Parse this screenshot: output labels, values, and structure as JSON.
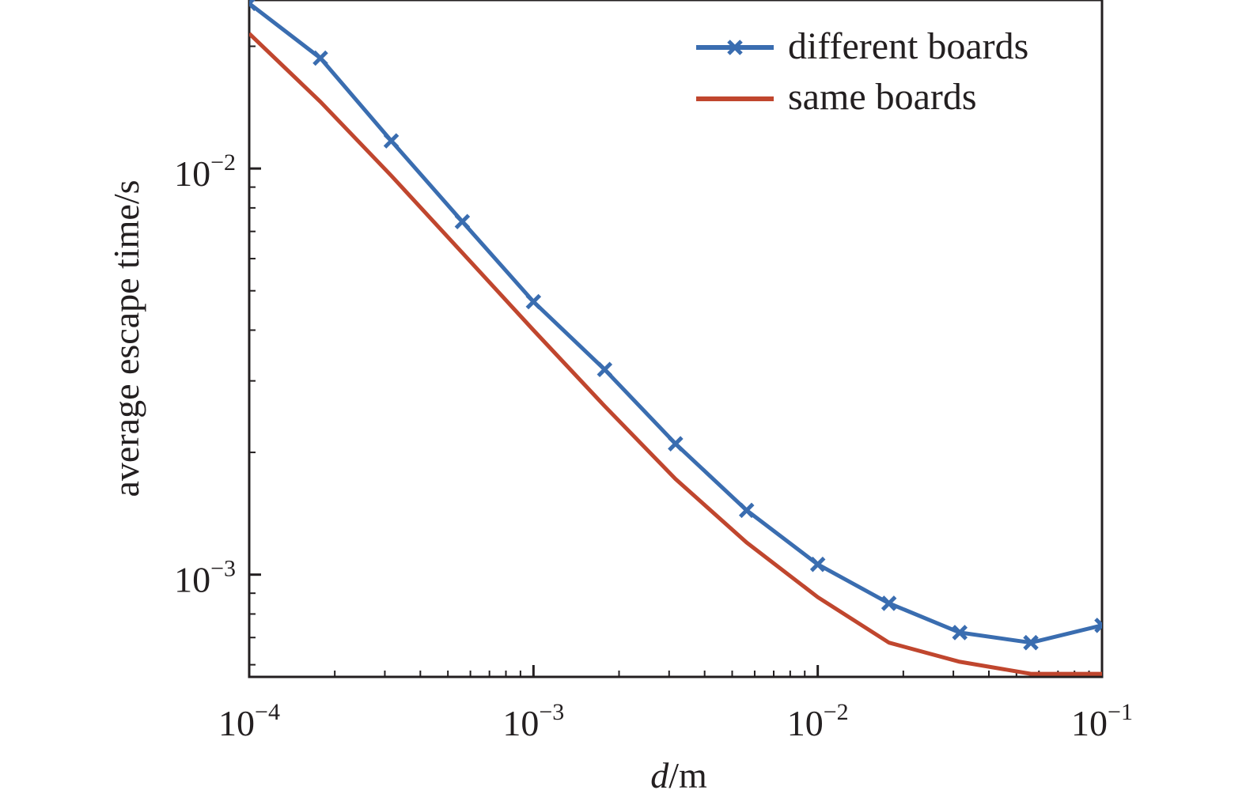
{
  "chart_data": {
    "type": "line",
    "title": "",
    "xlabel": {
      "italic": "d",
      "rest": "/m"
    },
    "ylabel": "average escape time/s",
    "xscale": "log",
    "yscale": "log",
    "xlim": [
      0.0001,
      0.1
    ],
    "ylim": [
      0.00056,
      0.026
    ],
    "grid": false,
    "legend_position": "top-right",
    "x_ticks": [
      {
        "value": 0.0001,
        "base": "10",
        "exp": "−4"
      },
      {
        "value": 0.001,
        "base": "10",
        "exp": "−3"
      },
      {
        "value": 0.01,
        "base": "10",
        "exp": "−2"
      },
      {
        "value": 0.1,
        "base": "10",
        "exp": "−1"
      }
    ],
    "y_ticks": [
      {
        "value": 0.001,
        "base": "10",
        "exp": "−3"
      },
      {
        "value": 0.01,
        "base": "10",
        "exp": "−2"
      }
    ],
    "series": [
      {
        "name": "different boards",
        "color": "#3a6db0",
        "marker": "x",
        "x": [
          0.0001,
          0.000178,
          0.000316,
          0.000562,
          0.001,
          0.00178,
          0.00316,
          0.00562,
          0.01,
          0.0178,
          0.0316,
          0.0562,
          0.1
        ],
        "y": [
          0.0255,
          0.0187,
          0.0117,
          0.0074,
          0.0047,
          0.0032,
          0.0021,
          0.00144,
          0.00106,
          0.00085,
          0.00072,
          0.00068,
          0.00075
        ]
      },
      {
        "name": "same boards",
        "color": "#c0462e",
        "marker": "none",
        "x": [
          0.0001,
          0.000178,
          0.000316,
          0.000562,
          0.001,
          0.00178,
          0.00316,
          0.00562,
          0.01,
          0.0178,
          0.0316,
          0.0562,
          0.1
        ],
        "y": [
          0.0215,
          0.0146,
          0.0096,
          0.0062,
          0.004,
          0.0026,
          0.00172,
          0.0012,
          0.00088,
          0.00068,
          0.00061,
          0.00057,
          0.00057
        ]
      }
    ]
  }
}
